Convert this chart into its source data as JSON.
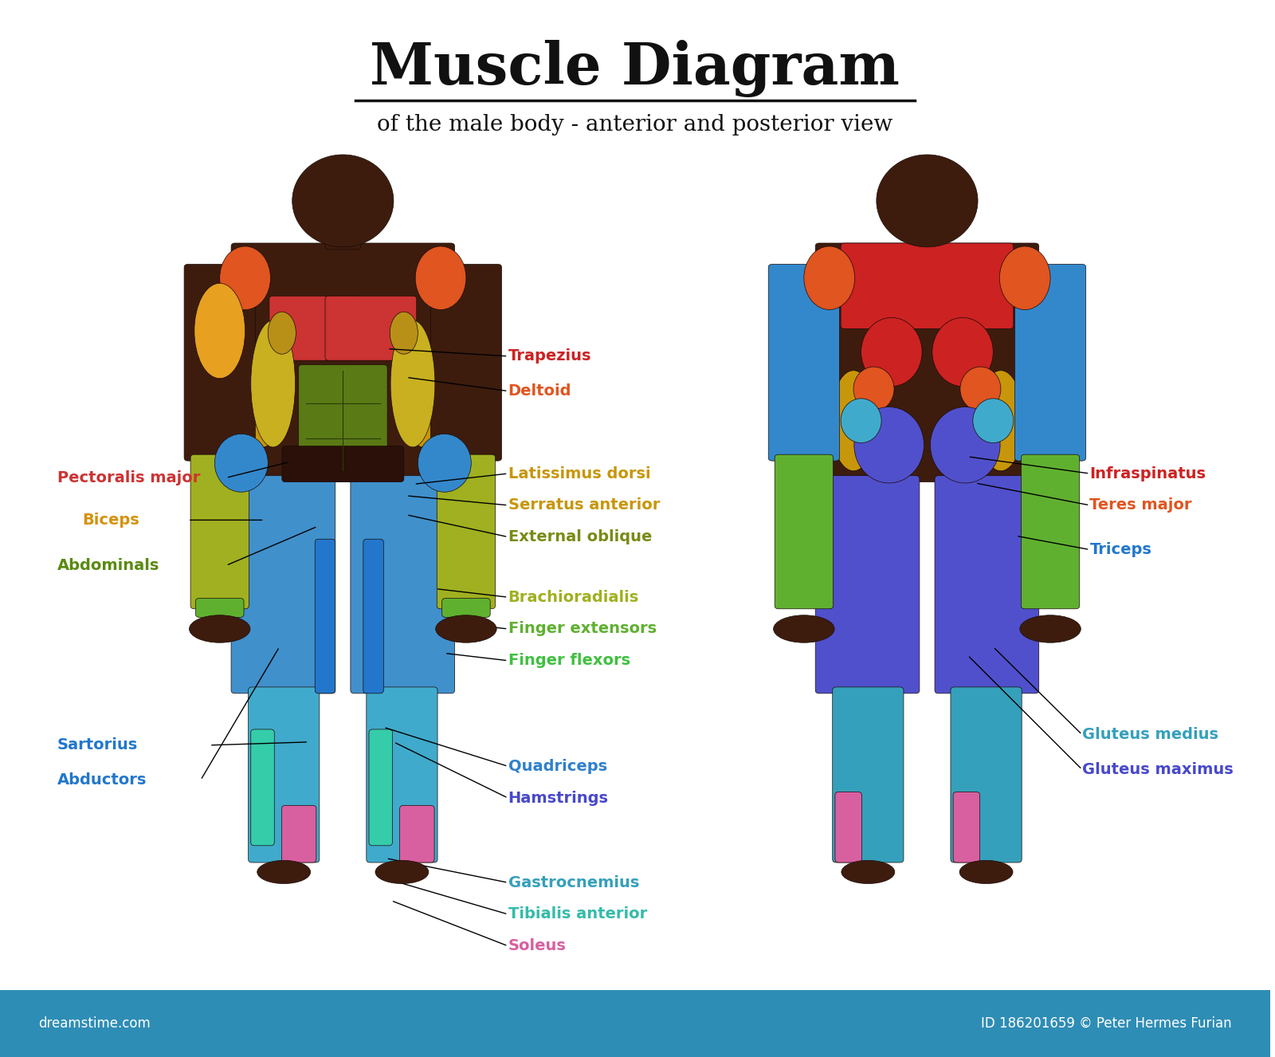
{
  "title": "Muscle Diagram",
  "subtitle": "of the male body - anterior and posterior view",
  "bg_color": "#ffffff",
  "footer_bg": "#2e8db5",
  "footer_text_left": "dreamstime.com",
  "footer_text_right": "ID 186201659 © Peter Hermes Furian",
  "skin_color": "#3d1c0e",
  "skin_dark": "#2a1008",
  "muscle_colors": {
    "trapezius": "#cc2222",
    "deltoid": "#e05520",
    "pectoralis": "#cc3333",
    "biceps": "#e8a020",
    "abdominals": "#5a8a20",
    "latissimus": "#e8a020",
    "serratus": "#e8a020",
    "external_oblique": "#8a9a20",
    "brachioradialis": "#a8b830",
    "finger_ext": "#80b840",
    "finger_flex": "#60c850",
    "quadriceps": "#4090cc",
    "hamstrings": "#5050cc",
    "sartorius": "#3388cc",
    "abductors": "#3388cc",
    "gastrocnemius": "#40aacc",
    "tibialis": "#40ccaa",
    "soleus": "#e870a0",
    "infraspinatus": "#cc2222",
    "teres_major": "#e05520",
    "triceps": "#3388cc",
    "gluteus_medius": "#40aacc",
    "gluteus_maximus": "#5050cc"
  }
}
